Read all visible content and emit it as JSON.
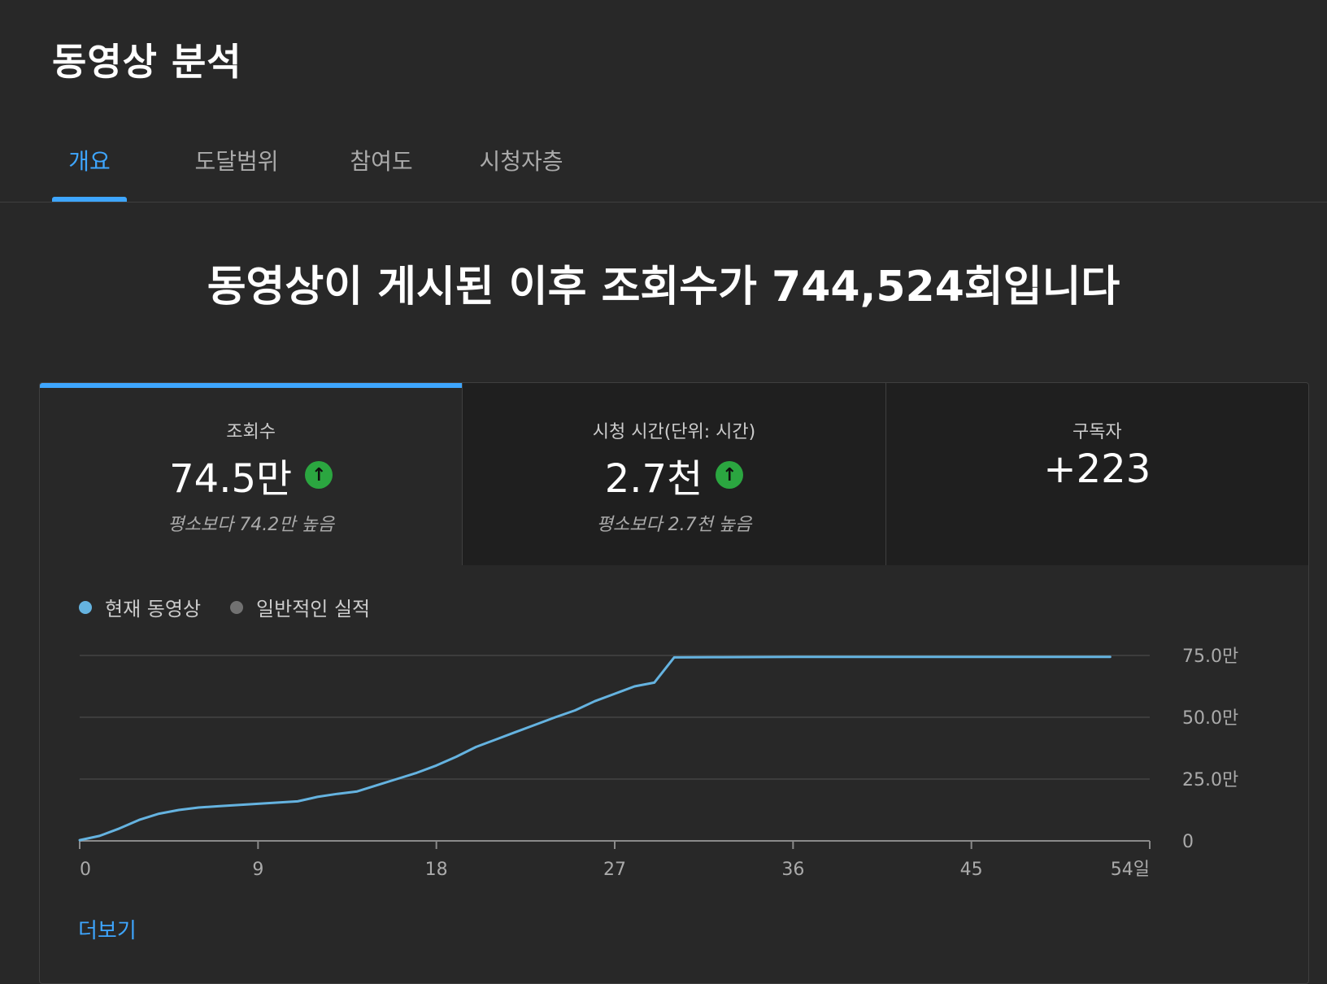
{
  "page": {
    "title": "동영상 분석",
    "headline": "동영상이 게시된 이후 조회수가 744,524회입니다",
    "more_link": "더보기"
  },
  "tabs": [
    {
      "label": "개요",
      "active": true
    },
    {
      "label": "도달범위",
      "active": false
    },
    {
      "label": "참여도",
      "active": false
    },
    {
      "label": "시청자층",
      "active": false
    }
  ],
  "metrics": [
    {
      "label": "조회수",
      "value": "74.5만",
      "trend": "up",
      "compare": "평소보다 74.2만 높음",
      "active": true
    },
    {
      "label": "시청 시간(단위: 시간)",
      "value": "2.7천",
      "trend": "up",
      "compare": "평소보다 2.7천 높음",
      "active": false
    },
    {
      "label": "구독자",
      "value": "+223",
      "trend": "",
      "compare": "",
      "active": false
    }
  ],
  "colors": {
    "accent": "#3ea6ff",
    "current_series": "#65b3e0",
    "typical_series": "#717171",
    "trend_up": "#2ba640"
  },
  "chart_data": {
    "type": "line",
    "x_unit": "days",
    "xlim": [
      0,
      54
    ],
    "ylim": [
      0,
      750000
    ],
    "x_ticks": [
      0,
      9,
      18,
      27,
      36,
      45,
      54
    ],
    "x_tick_labels": [
      "0",
      "9",
      "18",
      "27",
      "36",
      "45",
      "54일"
    ],
    "y_ticks": [
      0,
      250000,
      500000,
      750000
    ],
    "y_tick_labels": [
      "0",
      "25.0만",
      "50.0만",
      "75.0만"
    ],
    "y_axis_side": "right",
    "grid": true,
    "legend": [
      {
        "name": "현재 동영상",
        "color": "#65b3e0"
      },
      {
        "name": "일반적인 실적",
        "color": "#717171"
      }
    ],
    "legend_placement": "top-left",
    "series": [
      {
        "name": "현재 동영상",
        "x": [
          0,
          1,
          2,
          3,
          4,
          5,
          6,
          7,
          8,
          9,
          10,
          11,
          12,
          13,
          14,
          15,
          16,
          17,
          18,
          19,
          20,
          21,
          22,
          23,
          24,
          25,
          26,
          27,
          28,
          29,
          30,
          32,
          36,
          40,
          45,
          50,
          52
        ],
        "values": [
          3000,
          20000,
          50000,
          85000,
          110000,
          125000,
          135000,
          140000,
          145000,
          150000,
          155000,
          160000,
          178000,
          190000,
          200000,
          225000,
          250000,
          275000,
          305000,
          340000,
          380000,
          410000,
          440000,
          470000,
          500000,
          528000,
          565000,
          595000,
          625000,
          640000,
          742000,
          743000,
          744000,
          744200,
          744400,
          744500,
          744524
        ]
      }
    ]
  }
}
